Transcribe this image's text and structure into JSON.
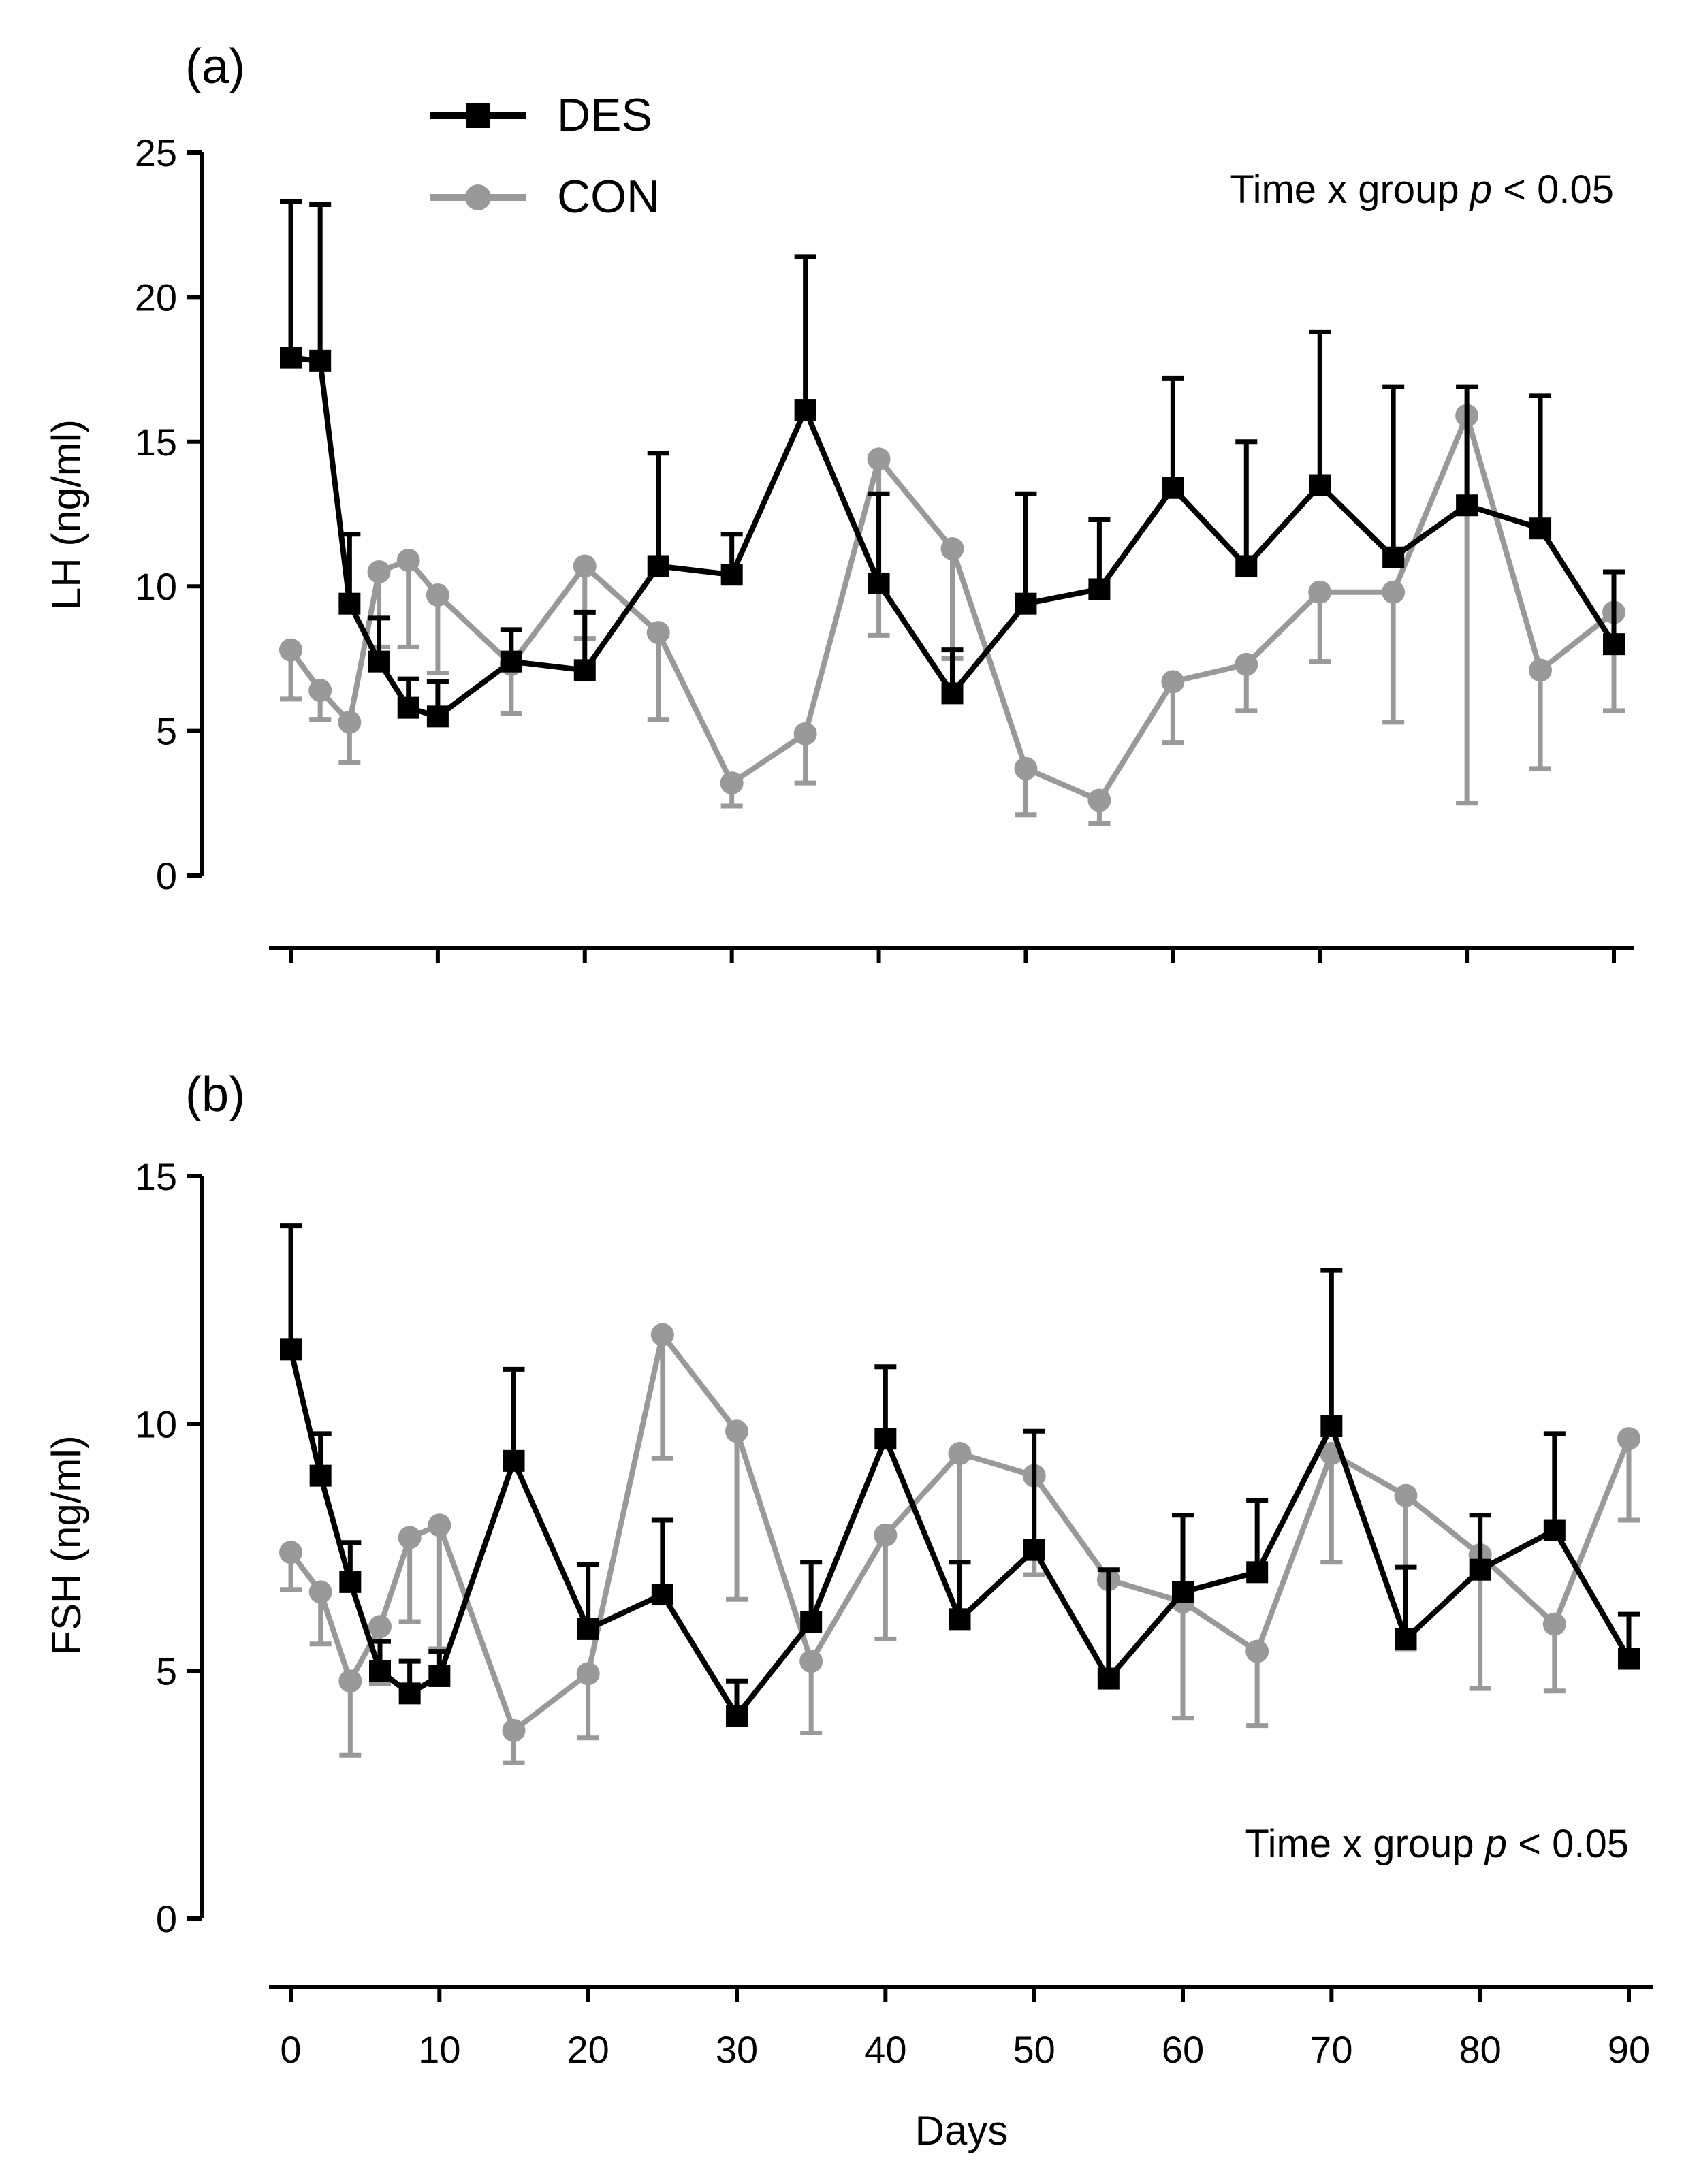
{
  "chart_data": [
    {
      "type": "line",
      "panel_label": "(a)",
      "ylabel": "LH (ng/ml)",
      "xlabel": "",
      "ylim": [
        0,
        25
      ],
      "yticks": [
        "0",
        "5",
        "10",
        "15",
        "20",
        "25"
      ],
      "xlim": [
        0,
        90
      ],
      "annotation": {
        "prefix": "Time x group ",
        "italic": "p",
        "suffix": " < 0.05"
      },
      "legend": {
        "position": "top-left",
        "entries": [
          "DES",
          "CON"
        ]
      },
      "series": [
        {
          "name": "DES",
          "color": "#000000",
          "marker": "square",
          "x": [
            0,
            2,
            4,
            6,
            8,
            10,
            15,
            20,
            25,
            30,
            35,
            40,
            45,
            50,
            55,
            60,
            65,
            70,
            75,
            80,
            85,
            90
          ],
          "values": [
            17.9,
            17.8,
            9.4,
            7.4,
            5.8,
            5.5,
            7.4,
            7.1,
            10.7,
            10.4,
            16.1,
            10.1,
            6.3,
            9.4,
            9.9,
            13.4,
            10.7,
            13.5,
            11.0,
            12.8,
            12.0,
            8.0
          ],
          "error": [
            5.4,
            5.4,
            2.4,
            1.5,
            1.0,
            1.2,
            1.1,
            2.0,
            3.9,
            1.4,
            5.3,
            3.1,
            1.5,
            3.8,
            2.4,
            3.8,
            4.3,
            5.3,
            5.9,
            4.1,
            4.6,
            2.5
          ],
          "error_direction": "up"
        },
        {
          "name": "CON",
          "color": "#999999",
          "marker": "circle",
          "x": [
            0,
            2,
            4,
            6,
            8,
            10,
            15,
            20,
            25,
            30,
            35,
            40,
            45,
            50,
            55,
            60,
            65,
            70,
            75,
            80,
            85,
            90
          ],
          "values": [
            7.8,
            6.4,
            5.3,
            10.5,
            10.9,
            9.7,
            7.3,
            10.7,
            8.4,
            3.2,
            4.9,
            14.4,
            11.3,
            3.7,
            2.6,
            6.7,
            7.3,
            9.8,
            9.8,
            15.9,
            7.1,
            9.1
          ],
          "error": [
            1.7,
            1.0,
            1.4,
            2.6,
            3.0,
            2.7,
            1.7,
            2.5,
            3.0,
            0.8,
            1.7,
            6.1,
            3.8,
            1.6,
            0.8,
            2.1,
            1.6,
            2.4,
            4.5,
            13.4,
            3.4,
            3.4
          ],
          "error_direction": "down"
        }
      ]
    },
    {
      "type": "line",
      "panel_label": "(b)",
      "ylabel": "FSH (ng/ml)",
      "xlabel": "Days",
      "ylim": [
        0,
        15
      ],
      "yticks": [
        "0",
        "5",
        "10",
        "15"
      ],
      "xlim": [
        0,
        90
      ],
      "xticks": [
        "0",
        "10",
        "20",
        "30",
        "40",
        "50",
        "60",
        "70",
        "80",
        "90"
      ],
      "annotation": {
        "prefix": "Time x group ",
        "italic": "p",
        "suffix": " < 0.05"
      },
      "series": [
        {
          "name": "DES",
          "color": "#000000",
          "marker": "square",
          "x": [
            0,
            2,
            4,
            6,
            8,
            10,
            15,
            20,
            25,
            30,
            35,
            40,
            45,
            50,
            55,
            60,
            65,
            70,
            75,
            80,
            85,
            90
          ],
          "values": [
            11.5,
            8.95,
            6.8,
            5.0,
            4.55,
            4.9,
            9.25,
            5.85,
            6.55,
            4.1,
            6.0,
            9.7,
            6.05,
            7.45,
            4.85,
            6.6,
            7.0,
            9.95,
            5.65,
            7.05,
            7.85,
            5.25
          ],
          "error": [
            2.5,
            0.85,
            0.8,
            0.6,
            0.65,
            0.5,
            1.85,
            1.3,
            1.5,
            0.7,
            1.2,
            1.45,
            1.15,
            2.4,
            2.2,
            1.55,
            1.45,
            3.15,
            1.45,
            1.1,
            1.95,
            0.9
          ],
          "error_direction": "up"
        },
        {
          "name": "CON",
          "color": "#999999",
          "marker": "circle",
          "x": [
            0,
            2,
            4,
            6,
            8,
            10,
            15,
            20,
            25,
            30,
            35,
            40,
            45,
            50,
            55,
            60,
            65,
            70,
            75,
            80,
            85,
            90
          ],
          "values": [
            7.4,
            6.6,
            4.8,
            5.9,
            7.7,
            7.95,
            3.8,
            4.95,
            11.8,
            9.85,
            5.2,
            7.75,
            9.4,
            8.95,
            6.85,
            6.4,
            5.4,
            9.4,
            8.55,
            7.35,
            5.95,
            9.7
          ],
          "error": [
            0.75,
            1.05,
            1.5,
            1.15,
            1.7,
            2.5,
            0.65,
            1.3,
            2.5,
            3.4,
            1.45,
            2.1,
            3.2,
            2.0,
            1.9,
            2.35,
            1.5,
            2.2,
            3.1,
            2.7,
            1.35,
            1.65
          ],
          "error_direction": "down"
        }
      ]
    }
  ]
}
